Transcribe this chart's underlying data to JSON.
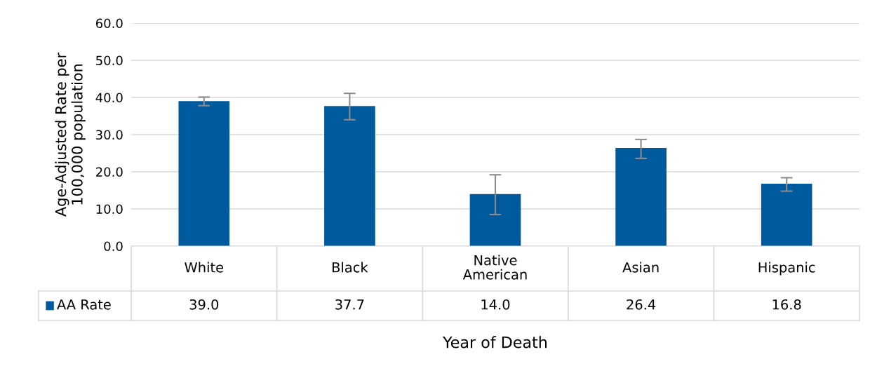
{
  "chart_data": {
    "type": "bar",
    "categories": [
      "White",
      "Black",
      "Native\nAmerican",
      "Asian",
      "Hispanic"
    ],
    "series": [
      {
        "name": "AA Rate",
        "color": "#005a9e",
        "values": [
          39.0,
          37.7,
          14.0,
          26.4,
          16.8
        ],
        "value_labels": [
          "39.0",
          "37.7",
          "14.0",
          "26.4",
          "16.8"
        ],
        "errors": [
          [
            37.8,
            40.1
          ],
          [
            34.0,
            41.1
          ],
          [
            8.5,
            19.2
          ],
          [
            23.6,
            28.7
          ],
          [
            14.8,
            18.4
          ]
        ]
      }
    ],
    "ylabel": "Age-Adjusted Rate per\n100,000 population",
    "xlabel": "Year of Death",
    "ylim": [
      0,
      60
    ],
    "yticks": [
      {
        "value": 0,
        "label": "0.0"
      },
      {
        "value": 10,
        "label": "10.0"
      },
      {
        "value": 20,
        "label": "20.0"
      },
      {
        "value": 30,
        "label": "30.0"
      },
      {
        "value": 40,
        "label": "40.0"
      },
      {
        "value": 50,
        "label": "50.0"
      },
      {
        "value": 60,
        "label": "60.0"
      }
    ],
    "grid": "y"
  }
}
